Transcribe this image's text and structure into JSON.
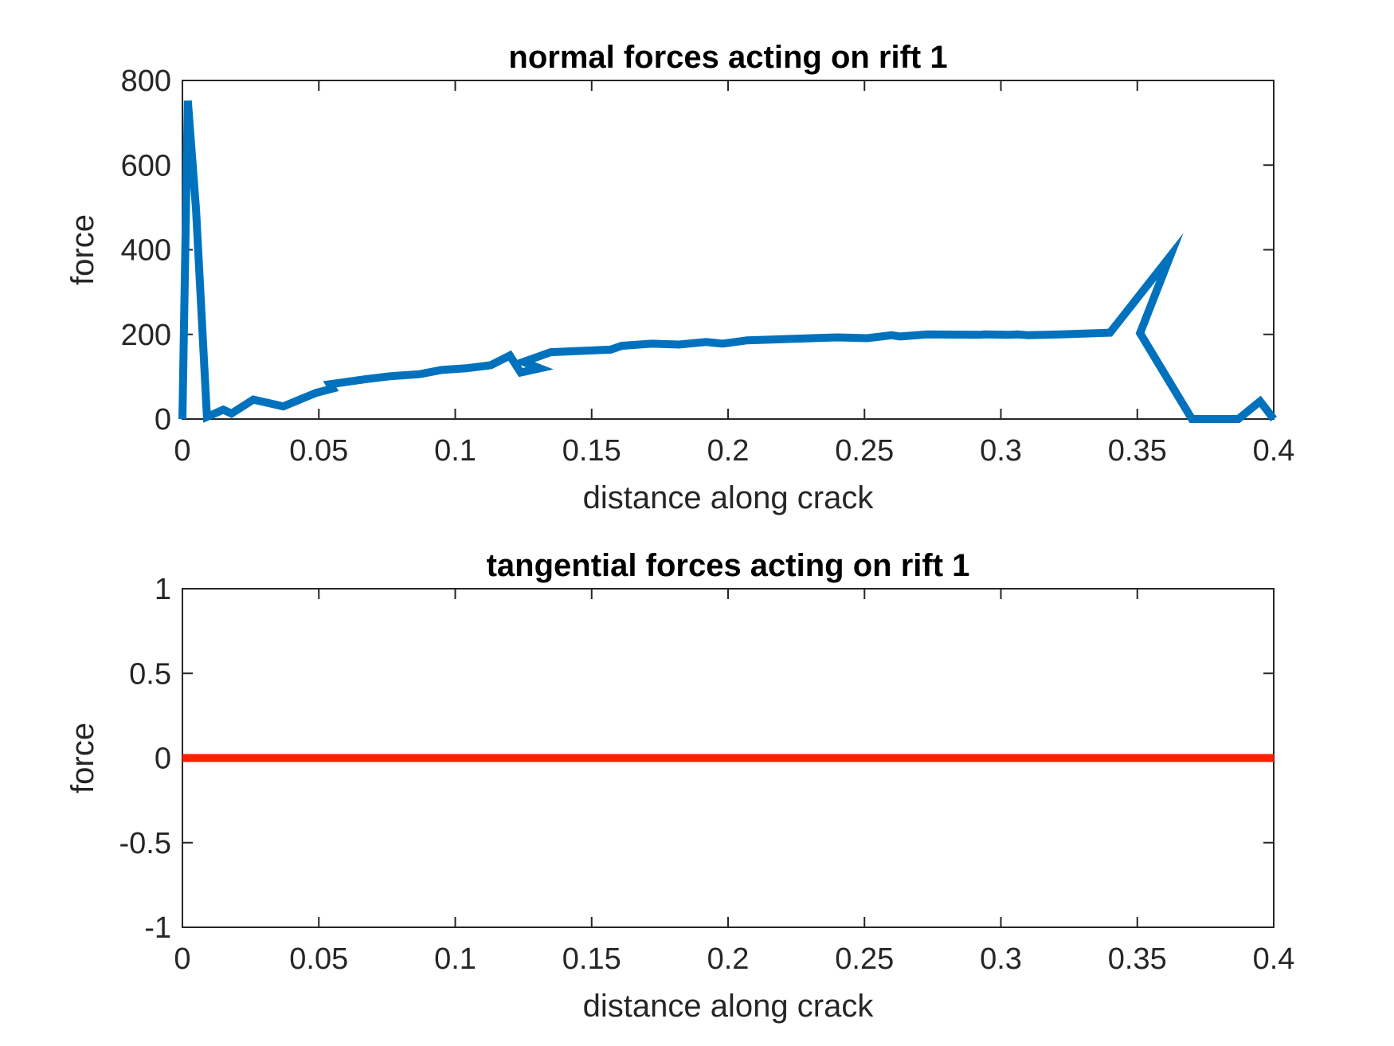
{
  "chart_data": [
    {
      "type": "line",
      "title": "normal forces acting on rift 1",
      "xlabel": "distance along crack",
      "ylabel": "force",
      "xlim": [
        0,
        0.4
      ],
      "ylim": [
        0,
        800
      ],
      "xticks": [
        "0",
        "0.05",
        "0.1",
        "0.15",
        "0.2",
        "0.25",
        "0.3",
        "0.35",
        "0.4"
      ],
      "yticks": [
        "0",
        "200",
        "400",
        "600",
        "800"
      ],
      "grid": false,
      "series": [
        {
          "color": "#0072BD",
          "x": [
            0,
            0.002,
            0.005,
            0.009,
            0.015,
            0.018,
            0.026,
            0.037,
            0.049,
            0.055,
            0.054,
            0.067,
            0.076,
            0.087,
            0.095,
            0.104,
            0.113,
            0.12,
            0.124,
            0.131,
            0.125,
            0.135,
            0.157,
            0.161,
            0.172,
            0.182,
            0.192,
            0.198,
            0.207,
            0.24,
            0.251,
            0.26,
            0.263,
            0.273,
            0.292,
            0.294,
            0.303,
            0.306,
            0.31,
            0.322,
            0.34,
            0.362,
            0.351,
            0.37,
            0.387,
            0.395,
            0.4
          ],
          "y": [
            0,
            752,
            495,
            5,
            22,
            13,
            46,
            30,
            62,
            72,
            82,
            94,
            101,
            106,
            116,
            120,
            127,
            150,
            110,
            120,
            135,
            158,
            164,
            173,
            178,
            176,
            182,
            178,
            186,
            193,
            191,
            198,
            195,
            200,
            199,
            200,
            199,
            200,
            198,
            200,
            204,
            384,
            203,
            0,
            0,
            42,
            0
          ]
        }
      ]
    },
    {
      "type": "line",
      "title": "tangential forces acting on rift 1",
      "xlabel": "distance along crack",
      "ylabel": "force",
      "xlim": [
        0,
        0.4
      ],
      "ylim": [
        -1,
        1
      ],
      "xticks": [
        "0",
        "0.05",
        "0.1",
        "0.15",
        "0.2",
        "0.25",
        "0.3",
        "0.35",
        "0.4"
      ],
      "yticks": [
        "-1",
        "-0.5",
        "0",
        "0.5",
        "1"
      ],
      "grid": false,
      "series": [
        {
          "color": "#FF2000",
          "x": [
            0,
            0.4
          ],
          "y": [
            0,
            0
          ]
        }
      ]
    }
  ]
}
